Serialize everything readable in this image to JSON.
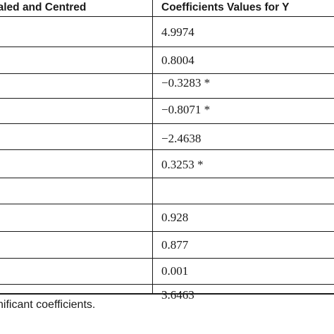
{
  "table": {
    "headers": {
      "col1": "caled and Centred",
      "col2": "Coefficients Values for Y"
    },
    "rows": [
      "4.9974",
      "0.8004",
      "−0.3283 *",
      "−0.8071 *",
      "−2.4638",
      "0.3253 *",
      "",
      "0.928",
      "0.877",
      "0.001",
      "3.6463"
    ]
  },
  "footnote": "nificant coefficients."
}
